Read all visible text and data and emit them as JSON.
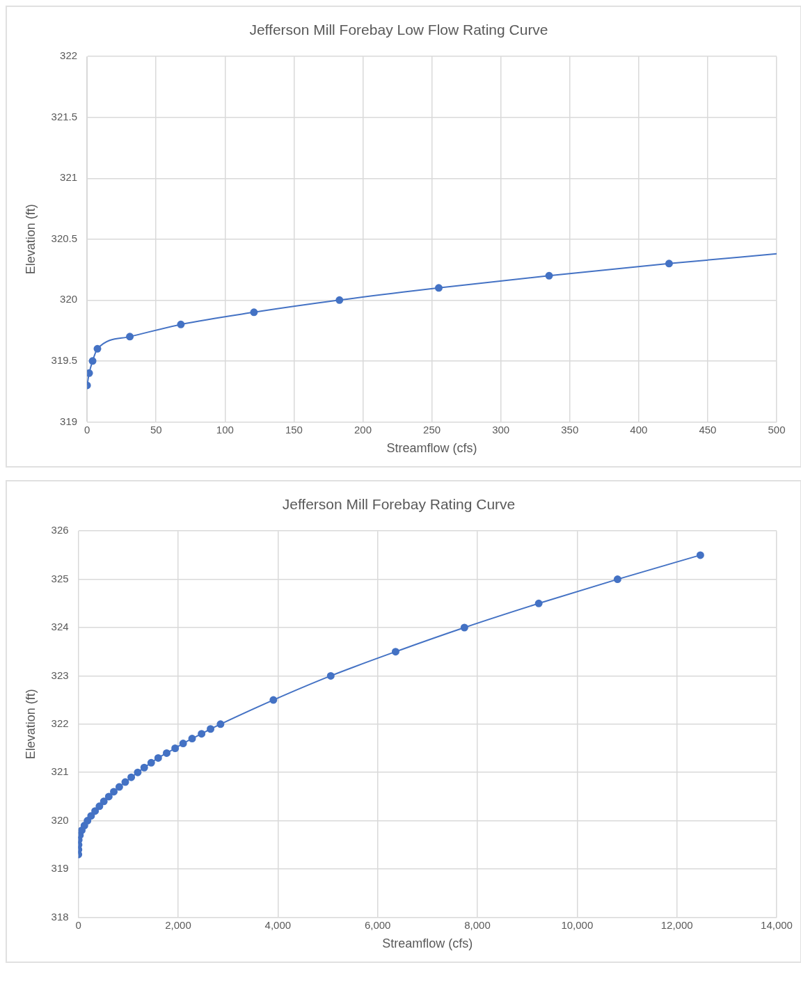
{
  "chart_data": [
    {
      "type": "line",
      "title": "Jefferson Mill Forebay Low Flow Rating Curve",
      "xlabel": "Streamflow (cfs)",
      "ylabel": "Elevation (ft)",
      "xlim": [
        0,
        500
      ],
      "xticks": [
        0,
        50,
        100,
        150,
        200,
        250,
        300,
        350,
        400,
        450,
        500
      ],
      "ylim": [
        319,
        322
      ],
      "yticks": [
        319,
        319.5,
        320,
        320.5,
        321,
        321.5,
        322
      ],
      "grid": true,
      "legend": false,
      "series": [
        {
          "type": "line",
          "marker": "none",
          "color": "#4472c4",
          "x": [
            0,
            1.5,
            4,
            7.5,
            31,
            68,
            121,
            183,
            255,
            335,
            422,
            500
          ],
          "values": [
            319.3,
            319.4,
            319.5,
            319.6,
            319.7,
            319.8,
            319.9,
            320,
            320.1,
            320.2,
            320.3,
            320.38
          ]
        },
        {
          "type": "scatter",
          "marker": "circle",
          "color": "#4472c4",
          "x": [
            0,
            1.5,
            4,
            7.5,
            31,
            68,
            121,
            183,
            255,
            335,
            422
          ],
          "values": [
            319.3,
            319.4,
            319.5,
            319.6,
            319.7,
            319.8,
            319.9,
            320,
            320.1,
            320.2,
            320.3
          ]
        }
      ]
    },
    {
      "type": "line",
      "title": "Jefferson Mill Forebay Rating Curve",
      "xlabel": "Streamflow (cfs)",
      "ylabel": "Elevation (ft)",
      "xlim": [
        0,
        14000
      ],
      "xticks": [
        0,
        {
          "value": 2000,
          "label": "2,000"
        },
        {
          "value": 4000,
          "label": "4,000"
        },
        {
          "value": 6000,
          "label": "6,000"
        },
        {
          "value": 8000,
          "label": "8,000"
        },
        {
          "value": 10000,
          "label": "10,000"
        },
        {
          "value": 12000,
          "label": "12,000"
        },
        {
          "value": 14000,
          "label": "14,000"
        }
      ],
      "ylim": [
        318,
        326
      ],
      "yticks": [
        318,
        319,
        320,
        321,
        322,
        323,
        324,
        325,
        326
      ],
      "grid": true,
      "legend": false,
      "marker": "circle",
      "series": [
        {
          "type": "line",
          "color": "#4472c4",
          "x": [
            0,
            1.5,
            4,
            7.5,
            31,
            68,
            121,
            183,
            255,
            335,
            422,
            510,
            610,
            710,
            820,
            940,
            1060,
            1190,
            1320,
            1460,
            1600,
            1770,
            1940,
            2100,
            2280,
            2470,
            2650,
            2850,
            3910,
            5060,
            6360,
            7740,
            9230,
            10810,
            12470
          ],
          "values": [
            319.3,
            319.4,
            319.5,
            319.6,
            319.7,
            319.8,
            319.9,
            320,
            320.1,
            320.2,
            320.3,
            320.4,
            320.5,
            320.6,
            320.7,
            320.8,
            320.9,
            321,
            321.1,
            321.2,
            321.3,
            321.4,
            321.5,
            321.6,
            321.7,
            321.8,
            321.9,
            322,
            322.5,
            323,
            323.5,
            324,
            324.5,
            325,
            325.5
          ]
        }
      ]
    }
  ]
}
